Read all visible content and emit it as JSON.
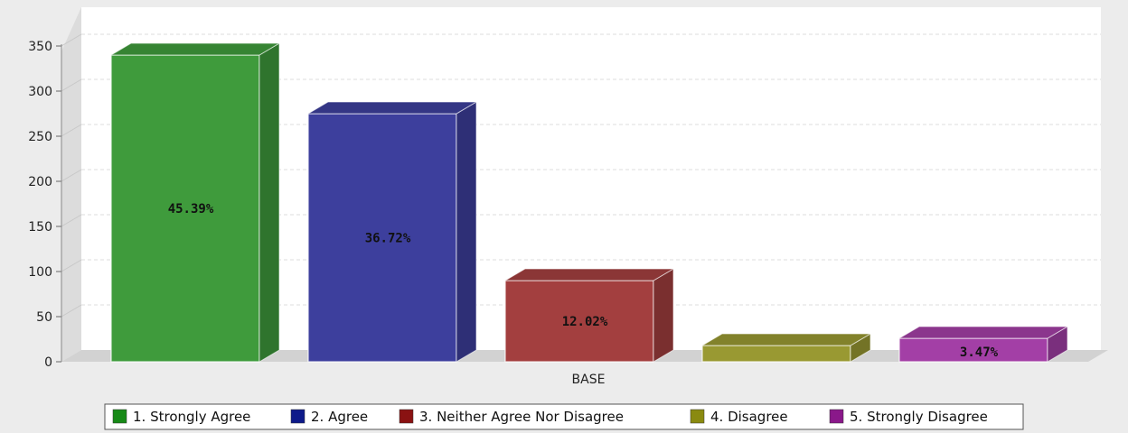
{
  "chart_data": {
    "type": "bar",
    "style": "3d",
    "categories": [
      "BASE"
    ],
    "series": [
      {
        "name": "1. Strongly Agree",
        "values": [
          340
        ],
        "label": "45.39%",
        "color": "#3f9b3c"
      },
      {
        "name": "2. Agree",
        "values": [
          275
        ],
        "label": "36.72%",
        "color": "#3d3f9d"
      },
      {
        "name": "3. Neither Agree Nor Disagree",
        "values": [
          90
        ],
        "label": "12.02%",
        "color": "#a33f3f"
      },
      {
        "name": "4. Disagree",
        "values": [
          18
        ],
        "label": "",
        "color": "#999932"
      },
      {
        "name": "5. Strongly Disagree",
        "values": [
          26
        ],
        "label": "3.47%",
        "color": "#a33fa6"
      }
    ],
    "ylim": [
      0,
      350
    ],
    "yticks": [
      0,
      50,
      100,
      150,
      200,
      250,
      300,
      350
    ],
    "xlabel": "",
    "ylabel": "",
    "grid": true,
    "legend_position": "bottom"
  },
  "legend_swatch_colors": [
    "#178a17",
    "#0e1a8a",
    "#8a1212",
    "#8a8a10",
    "#8a188a"
  ]
}
